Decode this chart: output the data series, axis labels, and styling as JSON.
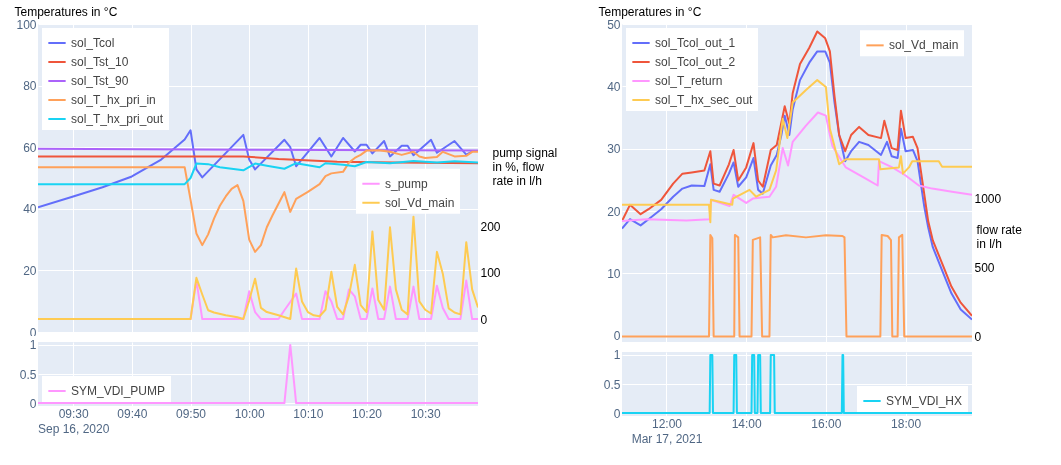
{
  "chart_data": [
    {
      "type": "line",
      "ylabel": "Temperatures in °C",
      "y2label": "pump signal in %, flow rate in l/h",
      "xlim": [
        "2020-09-16T09:24",
        "2020-09-16T10:39"
      ],
      "ylim": [
        0,
        100
      ],
      "yticks": [
        0,
        20,
        40,
        60,
        80,
        100
      ],
      "y2lim": [
        -28,
        637
      ],
      "y2ticks": [
        0,
        100,
        200
      ],
      "grid": true,
      "legend": "top left",
      "tick_labels": [
        "y",
        "y2"
      ],
      "series": [
        {
          "name": "sol_Tcol",
          "color": "#636efa",
          "x": [
            "2020-09-16T09:24",
            "2020-09-16T09:30",
            "2020-09-16T09:35",
            "2020-09-16T09:40",
            "2020-09-16T09:45",
            "2020-09-16T09:49",
            "2020-09-16T09:50",
            "2020-09-16T09:51",
            "2020-09-16T09:52",
            "2020-09-16T09:59",
            "2020-09-16T10:00",
            "2020-09-16T10:01",
            "2020-09-16T10:06",
            "2020-09-16T10:07",
            "2020-09-16T10:08",
            "2020-09-16T10:12",
            "2020-09-16T10:14",
            "2020-09-16T10:16",
            "2020-09-16T10:18",
            "2020-09-16T10:19",
            "2020-09-16T10:20",
            "2020-09-16T10:21",
            "2020-09-16T10:23",
            "2020-09-16T10:24",
            "2020-09-16T10:26",
            "2020-09-16T10:27",
            "2020-09-16T10:28",
            "2020-09-16T10:31",
            "2020-09-16T10:32",
            "2020-09-16T10:35",
            "2020-09-16T10:37",
            "2020-09-16T10:38"
          ],
          "values": [
            40.5,
            44,
            47,
            50.5,
            56,
            62.5,
            65.5,
            52.8,
            50.2,
            64,
            56,
            52.8,
            62.4,
            60,
            53.8,
            63,
            57,
            63,
            58.6,
            60.8,
            60.8,
            58,
            62,
            57,
            60.5,
            60.5,
            57.4,
            62.4,
            58.2,
            62,
            57.6,
            58.6
          ]
        },
        {
          "name": "sol_Tst_10",
          "color": "#ef553b",
          "x": [
            "2020-09-16T09:24",
            "2020-09-16T09:59",
            "2020-09-16T10:05",
            "2020-09-16T10:15",
            "2020-09-16T10:25",
            "2020-09-16T10:39"
          ],
          "values": [
            57,
            57,
            56.2,
            55.3,
            55,
            54.8
          ]
        },
        {
          "name": "sol_Tst_90",
          "color": "#ab63fa",
          "x": [
            "2020-09-16T09:24",
            "2020-09-16T10:00",
            "2020-09-16T10:39"
          ],
          "values": [
            59.5,
            59.2,
            58.9
          ]
        },
        {
          "name": "sol_T_hx_pri_in",
          "color": "#ffa15a",
          "x": [
            "2020-09-16T09:24",
            "2020-09-16T09:49",
            "2020-09-16T09:50",
            "2020-09-16T09:51",
            "2020-09-16T09:52",
            "2020-09-16T09:53",
            "2020-09-16T09:54",
            "2020-09-16T09:55",
            "2020-09-16T09:56",
            "2020-09-16T09:57",
            "2020-09-16T09:58",
            "2020-09-16T09:59",
            "2020-09-16T10:00",
            "2020-09-16T10:01",
            "2020-09-16T10:02",
            "2020-09-16T10:03",
            "2020-09-16T10:04",
            "2020-09-16T10:06",
            "2020-09-16T10:07",
            "2020-09-16T10:08",
            "2020-09-16T10:10",
            "2020-09-16T10:12",
            "2020-09-16T10:13",
            "2020-09-16T10:14",
            "2020-09-16T10:16",
            "2020-09-16T10:17",
            "2020-09-16T10:18",
            "2020-09-16T10:19",
            "2020-09-16T10:20",
            "2020-09-16T10:22",
            "2020-09-16T10:24",
            "2020-09-16T10:26",
            "2020-09-16T10:28",
            "2020-09-16T10:29",
            "2020-09-16T10:30",
            "2020-09-16T10:32",
            "2020-09-16T10:33",
            "2020-09-16T10:35",
            "2020-09-16T10:37",
            "2020-09-16T10:38",
            "2020-09-16T10:39"
          ],
          "values": [
            53.5,
            53.5,
            43,
            32,
            28.2,
            31.7,
            36.8,
            41,
            44,
            46.5,
            47.7,
            42.6,
            30,
            26,
            28.2,
            34,
            38,
            45.4,
            39,
            43.2,
            45.5,
            48,
            50.6,
            51.5,
            52,
            55,
            56.5,
            57.5,
            58.9,
            59,
            58.5,
            57.5,
            58.5,
            57,
            56.5,
            56.8,
            58.5,
            57,
            57.2,
            58.5,
            58.5
          ]
        },
        {
          "name": "sol_T_hx_pri_out",
          "color": "#19d3f3",
          "x": [
            "2020-09-16T09:24",
            "2020-09-16T09:49",
            "2020-09-16T09:50",
            "2020-09-16T09:51",
            "2020-09-16T09:53",
            "2020-09-16T09:55",
            "2020-09-16T09:59",
            "2020-09-16T10:01",
            "2020-09-16T10:03",
            "2020-09-16T10:06",
            "2020-09-16T10:08",
            "2020-09-16T10:12",
            "2020-09-16T10:13",
            "2020-09-16T10:16",
            "2020-09-16T10:18",
            "2020-09-16T10:20",
            "2020-09-16T10:24",
            "2020-09-16T10:28",
            "2020-09-16T10:32",
            "2020-09-16T10:35",
            "2020-09-16T10:39"
          ],
          "values": [
            48,
            48,
            50,
            54.7,
            54.5,
            53.5,
            52.5,
            54.7,
            54,
            53,
            54.8,
            53.5,
            54.8,
            54.3,
            53.8,
            55.2,
            54.8,
            55.5,
            55,
            55.4,
            55
          ]
        },
        {
          "name": "s_pump",
          "color": "#ff97ff",
          "axis": "y2",
          "x": [
            "2020-09-16T09:24",
            "2020-09-16T09:50",
            "2020-09-16T09:51",
            "2020-09-16T09:52",
            "2020-09-16T09:59",
            "2020-09-16T10:00",
            "2020-09-16T10:01",
            "2020-09-16T10:02",
            "2020-09-16T10:05",
            "2020-09-16T10:06",
            "2020-09-16T10:08",
            "2020-09-16T10:09",
            "2020-09-16T10:12",
            "2020-09-16T10:13",
            "2020-09-16T10:14",
            "2020-09-16T10:15",
            "2020-09-16T10:16",
            "2020-09-16T10:17",
            "2020-09-16T10:18",
            "2020-09-16T10:19",
            "2020-09-16T10:20",
            "2020-09-16T10:21",
            "2020-09-16T10:22",
            "2020-09-16T10:23",
            "2020-09-16T10:24",
            "2020-09-16T10:25",
            "2020-09-16T10:27",
            "2020-09-16T10:28",
            "2020-09-16T10:29",
            "2020-09-16T10:31",
            "2020-09-16T10:32",
            "2020-09-16T10:33",
            "2020-09-16T10:34",
            "2020-09-16T10:36",
            "2020-09-16T10:37",
            "2020-09-16T10:38",
            "2020-09-16T10:39"
          ],
          "values": [
            0,
            0,
            83,
            0,
            0,
            60,
            15,
            0,
            0,
            19,
            55,
            0,
            0,
            60,
            38,
            0,
            0,
            64,
            49,
            0,
            0,
            66,
            0,
            0,
            70,
            0,
            0,
            70,
            0,
            0,
            72,
            24,
            0,
            0,
            83,
            0,
            0
          ]
        },
        {
          "name": "sol_Vd_main",
          "color": "#fecb52",
          "axis": "y2",
          "x": [
            "2020-09-16T09:24",
            "2020-09-16T09:50",
            "2020-09-16T09:51",
            "2020-09-16T09:52",
            "2020-09-16T09:53",
            "2020-09-16T09:54",
            "2020-09-16T09:56",
            "2020-09-16T09:58",
            "2020-09-16T09:59",
            "2020-09-16T10:00",
            "2020-09-16T10:01",
            "2020-09-16T10:02",
            "2020-09-16T10:03",
            "2020-09-16T10:05",
            "2020-09-16T10:07",
            "2020-09-16T10:08",
            "2020-09-16T10:09",
            "2020-09-16T10:10",
            "2020-09-16T10:11",
            "2020-09-16T10:12",
            "2020-09-16T10:13",
            "2020-09-16T10:14",
            "2020-09-16T10:15",
            "2020-09-16T10:16",
            "2020-09-16T10:17",
            "2020-09-16T10:18",
            "2020-09-16T10:19",
            "2020-09-16T10:20",
            "2020-09-16T10:21",
            "2020-09-16T10:22",
            "2020-09-16T10:23",
            "2020-09-16T10:24",
            "2020-09-16T10:25",
            "2020-09-16T10:26",
            "2020-09-16T10:27",
            "2020-09-16T10:28",
            "2020-09-16T10:29",
            "2020-09-16T10:30",
            "2020-09-16T10:31",
            "2020-09-16T10:32",
            "2020-09-16T10:33",
            "2020-09-16T10:34",
            "2020-09-16T10:35",
            "2020-09-16T10:36",
            "2020-09-16T10:37",
            "2020-09-16T10:38",
            "2020-09-16T10:39"
          ],
          "values": [
            0,
            0,
            89,
            53,
            19,
            14,
            8,
            4,
            0,
            40,
            87,
            24,
            15,
            8,
            0,
            109,
            38,
            15,
            8,
            6,
            20,
            102,
            26,
            10,
            50,
            117,
            30,
            15,
            189,
            41,
            20,
            198,
            64,
            20,
            10,
            221,
            38,
            20,
            12,
            145,
            98,
            23,
            14,
            10,
            166,
            64,
            25
          ]
        }
      ]
    },
    {
      "type": "line",
      "xlim": [
        "2020-09-16T09:24",
        "2020-09-16T10:39"
      ],
      "xticks": [
        {
          "value": "2020-09-16T09:30",
          "label": "09:30"
        },
        {
          "value": "2020-09-16T09:40",
          "label": "09:40"
        },
        {
          "value": "2020-09-16T09:50",
          "label": "09:50"
        },
        {
          "value": "2020-09-16T10:00",
          "label": "10:00"
        },
        {
          "value": "2020-09-16T10:10",
          "label": "10:10"
        },
        {
          "value": "2020-09-16T10:20",
          "label": "10:20"
        },
        {
          "value": "2020-09-16T10:30",
          "label": "10:30"
        }
      ],
      "ylim": [
        -0.05,
        1.05
      ],
      "yticks": [
        0,
        0.5,
        1
      ],
      "grid": true,
      "legend": "bottom left",
      "annotations": [
        "Sep 16, 2020"
      ],
      "series": [
        {
          "name": "SYM_VDI_PUMP",
          "color": "#ff97ff",
          "x": [
            "2020-09-16T09:24",
            "2020-09-16T10:06",
            "2020-09-16T10:07",
            "2020-09-16T10:08",
            "2020-09-16T10:39"
          ],
          "values": [
            0,
            0,
            1,
            0,
            0
          ]
        }
      ]
    },
    {
      "type": "line",
      "ylabel": "Temperatures in °C",
      "y2label": "flow rate in l/h",
      "xlim": [
        "2021-03-17T10:53",
        "2021-03-17T19:40"
      ],
      "ylim": [
        -1,
        50
      ],
      "yticks": [
        0,
        10,
        20,
        30,
        40,
        50
      ],
      "y2lim": [
        -40,
        2270
      ],
      "y2ticks": [
        0,
        500,
        1000
      ],
      "grid": true,
      "legend": "top left",
      "tick_labels": [
        "y",
        "y2"
      ],
      "series": [
        {
          "name": "sol_Tcol_out_1",
          "color": "#636efa",
          "x": [
            "2021-03-17T10:53",
            "2021-03-17T11:05",
            "2021-03-17T11:21",
            "2021-03-17T11:33",
            "2021-03-17T11:52",
            "2021-03-17T12:10",
            "2021-03-17T12:24",
            "2021-03-17T12:38",
            "2021-03-17T12:57",
            "2021-03-17T13:06",
            "2021-03-17T13:11",
            "2021-03-17T13:20",
            "2021-03-17T13:34",
            "2021-03-17T13:41",
            "2021-03-17T13:48",
            "2021-03-17T14:00",
            "2021-03-17T14:11",
            "2021-03-17T14:18",
            "2021-03-17T14:25",
            "2021-03-17T14:37",
            "2021-03-17T14:46",
            "2021-03-17T14:53",
            "2021-03-17T14:58",
            "2021-03-17T15:05",
            "2021-03-17T15:10",
            "2021-03-17T15:21",
            "2021-03-17T15:35",
            "2021-03-17T15:47",
            "2021-03-17T15:59",
            "2021-03-17T16:06",
            "2021-03-17T16:13",
            "2021-03-17T16:20",
            "2021-03-17T16:29",
            "2021-03-17T16:38",
            "2021-03-17T16:50",
            "2021-03-17T17:04",
            "2021-03-17T17:23",
            "2021-03-17T17:32",
            "2021-03-17T17:39",
            "2021-03-17T17:48",
            "2021-03-17T17:53",
            "2021-03-17T18:00",
            "2021-03-17T18:11",
            "2021-03-17T18:18",
            "2021-03-17T18:28",
            "2021-03-17T18:34",
            "2021-03-17T18:41",
            "2021-03-17T18:55",
            "2021-03-17T19:09",
            "2021-03-17T19:23",
            "2021-03-17T19:40"
          ],
          "values": [
            17.2,
            18.7,
            17.7,
            18.7,
            20.3,
            22.3,
            23.6,
            24.1,
            24,
            27.5,
            23.4,
            23.1,
            26,
            27.8,
            23.9,
            25.4,
            28.5,
            23.4,
            22.8,
            27.3,
            29,
            32.2,
            35.3,
            32.2,
            36.3,
            41,
            43.8,
            45.6,
            45.6,
            43.8,
            37.4,
            32.2,
            28,
            29.6,
            31.1,
            30.6,
            29,
            31.1,
            28.8,
            28.5,
            33.2,
            29.6,
            29.8,
            28,
            20.8,
            17.4,
            14.2,
            10.5,
            6.8,
            4.2,
            2.6
          ]
        },
        {
          "name": "sol_Tcol_out_2",
          "color": "#ef553b",
          "x": [
            "2021-03-17T10:53",
            "2021-03-17T11:05",
            "2021-03-17T11:21",
            "2021-03-17T11:33",
            "2021-03-17T11:52",
            "2021-03-17T12:10",
            "2021-03-17T12:24",
            "2021-03-17T12:38",
            "2021-03-17T12:57",
            "2021-03-17T13:06",
            "2021-03-17T13:11",
            "2021-03-17T13:20",
            "2021-03-17T13:34",
            "2021-03-17T13:41",
            "2021-03-17T13:48",
            "2021-03-17T14:00",
            "2021-03-17T14:11",
            "2021-03-17T14:18",
            "2021-03-17T14:25",
            "2021-03-17T14:37",
            "2021-03-17T14:46",
            "2021-03-17T14:53",
            "2021-03-17T14:58",
            "2021-03-17T15:05",
            "2021-03-17T15:10",
            "2021-03-17T15:21",
            "2021-03-17T15:35",
            "2021-03-17T15:47",
            "2021-03-17T15:59",
            "2021-03-17T16:06",
            "2021-03-17T16:13",
            "2021-03-17T16:20",
            "2021-03-17T16:29",
            "2021-03-17T16:38",
            "2021-03-17T16:50",
            "2021-03-17T17:04",
            "2021-03-17T17:23",
            "2021-03-17T17:28",
            "2021-03-17T17:39",
            "2021-03-17T17:48",
            "2021-03-17T17:53",
            "2021-03-17T18:00",
            "2021-03-17T18:11",
            "2021-03-17T18:18",
            "2021-03-17T18:28",
            "2021-03-17T18:34",
            "2021-03-17T18:41",
            "2021-03-17T18:55",
            "2021-03-17T19:09",
            "2021-03-17T19:23",
            "2021-03-17T19:40"
          ],
          "values": [
            18.4,
            21,
            19.5,
            20.3,
            21.8,
            24.4,
            26,
            26.2,
            26.5,
            29.6,
            24.4,
            24.1,
            27.5,
            29.8,
            24.9,
            27,
            30.9,
            24.9,
            23.9,
            29.8,
            30.6,
            34.2,
            36.8,
            34,
            38.9,
            43.6,
            46.2,
            48.8,
            47.7,
            45.6,
            38.4,
            32.2,
            29.6,
            32.2,
            33.5,
            32.2,
            31.7,
            34.5,
            30.1,
            29.8,
            36.1,
            31.7,
            31.9,
            30.1,
            22.8,
            18.4,
            15.3,
            11.6,
            7.9,
            5.3,
            3.2
          ]
        },
        {
          "name": "sol_T_return",
          "color": "#ff97ff",
          "x": [
            "2021-03-17T10:53",
            "2021-03-17T11:30",
            "2021-03-17T12:30",
            "2021-03-17T13:05",
            "2021-03-17T13:07",
            "2021-03-17T13:35",
            "2021-03-17T13:41",
            "2021-03-17T14:00",
            "2021-03-17T14:10",
            "2021-03-17T14:35",
            "2021-03-17T14:45",
            "2021-03-17T14:55",
            "2021-03-17T15:03",
            "2021-03-17T15:10",
            "2021-03-17T15:30",
            "2021-03-17T15:48",
            "2021-03-17T16:00",
            "2021-03-17T16:06",
            "2021-03-17T16:10",
            "2021-03-17T16:30",
            "2021-03-17T17:00",
            "2021-03-17T17:18",
            "2021-03-17T17:20",
            "2021-03-17T17:40",
            "2021-03-17T18:00",
            "2021-03-17T18:20",
            "2021-03-17T18:40",
            "2021-03-17T19:10",
            "2021-03-17T19:40"
          ],
          "values": [
            18.4,
            18.7,
            18.5,
            18.7,
            21.8,
            20.8,
            22.6,
            21.3,
            22,
            22.3,
            23.9,
            30.1,
            27.3,
            31.1,
            33.7,
            35.8,
            35.3,
            32.2,
            30.4,
            27,
            25.2,
            24.1,
            28,
            27,
            25.7,
            24.1,
            23.6,
            23.1,
            22.6
          ]
        },
        {
          "name": "sol_T_hx_sec_out",
          "color": "#fecb52",
          "x": [
            "2021-03-17T10:53",
            "2021-03-17T13:04",
            "2021-03-17T13:06",
            "2021-03-17T13:07",
            "2021-03-17T13:39",
            "2021-03-17T13:40",
            "2021-03-17T14:05",
            "2021-03-17T14:15",
            "2021-03-17T14:35",
            "2021-03-17T14:45",
            "2021-03-17T14:55",
            "2021-03-17T15:02",
            "2021-03-17T15:10",
            "2021-03-17T15:30",
            "2021-03-17T15:47",
            "2021-03-17T16:00",
            "2021-03-17T16:06",
            "2021-03-17T16:20",
            "2021-03-17T16:30",
            "2021-03-17T17:20",
            "2021-03-17T17:22",
            "2021-03-17T17:50",
            "2021-03-17T17:53",
            "2021-03-17T17:56",
            "2021-03-17T18:05",
            "2021-03-17T18:10",
            "2021-03-17T18:50",
            "2021-03-17T18:55",
            "2021-03-17T19:40"
          ],
          "values": [
            21,
            21,
            18.2,
            21.8,
            21,
            22,
            23.4,
            22.3,
            23.4,
            26.5,
            34.8,
            31.7,
            37.4,
            39.4,
            41,
            39.9,
            33.2,
            27.5,
            28.3,
            28.3,
            26.7,
            27,
            28.8,
            26,
            27,
            28,
            28,
            27.1,
            27.1
          ]
        },
        {
          "name": "sol_Vd_main",
          "color": "#ffa15a",
          "axis": "y2",
          "x": [
            "2021-03-17T10:53",
            "2021-03-17T13:04",
            "2021-03-17T13:06",
            "2021-03-17T13:09",
            "2021-03-17T13:11",
            "2021-03-17T13:42",
            "2021-03-17T13:43",
            "2021-03-17T13:48",
            "2021-03-17T13:50",
            "2021-03-17T14:08",
            "2021-03-17T14:10",
            "2021-03-17T14:21",
            "2021-03-17T14:24",
            "2021-03-17T14:35",
            "2021-03-17T14:37",
            "2021-03-17T14:40",
            "2021-03-17T15:00",
            "2021-03-17T15:30",
            "2021-03-17T16:00",
            "2021-03-17T16:25",
            "2021-03-17T16:28",
            "2021-03-17T16:31",
            "2021-03-17T17:22",
            "2021-03-17T17:24",
            "2021-03-17T17:33",
            "2021-03-17T17:38",
            "2021-03-17T17:40",
            "2021-03-17T17:48",
            "2021-03-17T17:50",
            "2021-03-17T17:55",
            "2021-03-17T17:58",
            "2021-03-17T19:40"
          ],
          "values": [
            0,
            0,
            738,
            714,
            0,
            0,
            738,
            720,
            0,
            0,
            702,
            720,
            0,
            0,
            738,
            720,
            735,
            720,
            735,
            730,
            720,
            0,
            0,
            738,
            730,
            700,
            0,
            0,
            720,
            738,
            0,
            0
          ]
        }
      ]
    },
    {
      "type": "line",
      "xlim": [
        "2021-03-17T10:53",
        "2021-03-17T19:40"
      ],
      "xticks": [
        {
          "value": "2021-03-17T12:00",
          "label": "12:00"
        },
        {
          "value": "2021-03-17T14:00",
          "label": "14:00"
        },
        {
          "value": "2021-03-17T16:00",
          "label": "16:00"
        },
        {
          "value": "2021-03-17T18:00",
          "label": "18:00"
        }
      ],
      "ylim": [
        -0.05,
        1.05
      ],
      "yticks": [
        0,
        0.5,
        1
      ],
      "grid": true,
      "legend": "bottom right",
      "annotations": [
        "Mar 17, 2021"
      ],
      "series": [
        {
          "name": "SYM_VDI_HX",
          "color": "#19d3f3",
          "x": [
            "2021-03-17T10:53",
            "2021-03-17T13:05",
            "2021-03-17T13:06",
            "2021-03-17T13:09",
            "2021-03-17T13:10",
            "2021-03-17T13:41",
            "2021-03-17T13:42",
            "2021-03-17T13:45",
            "2021-03-17T13:46",
            "2021-03-17T14:08",
            "2021-03-17T14:09",
            "2021-03-17T14:12",
            "2021-03-17T14:13",
            "2021-03-17T14:17",
            "2021-03-17T14:18",
            "2021-03-17T14:21",
            "2021-03-17T14:22",
            "2021-03-17T14:36",
            "2021-03-17T14:37",
            "2021-03-17T14:42",
            "2021-03-17T14:43",
            "2021-03-17T16:24",
            "2021-03-17T16:25",
            "2021-03-17T16:26",
            "2021-03-17T16:27",
            "2021-03-17T19:40"
          ],
          "values": [
            0,
            0,
            1,
            1,
            0,
            0,
            1,
            1,
            0,
            0,
            1,
            1,
            0,
            0,
            1,
            1,
            0,
            0,
            1,
            1,
            0,
            0,
            1,
            1,
            0,
            0
          ]
        }
      ]
    }
  ]
}
